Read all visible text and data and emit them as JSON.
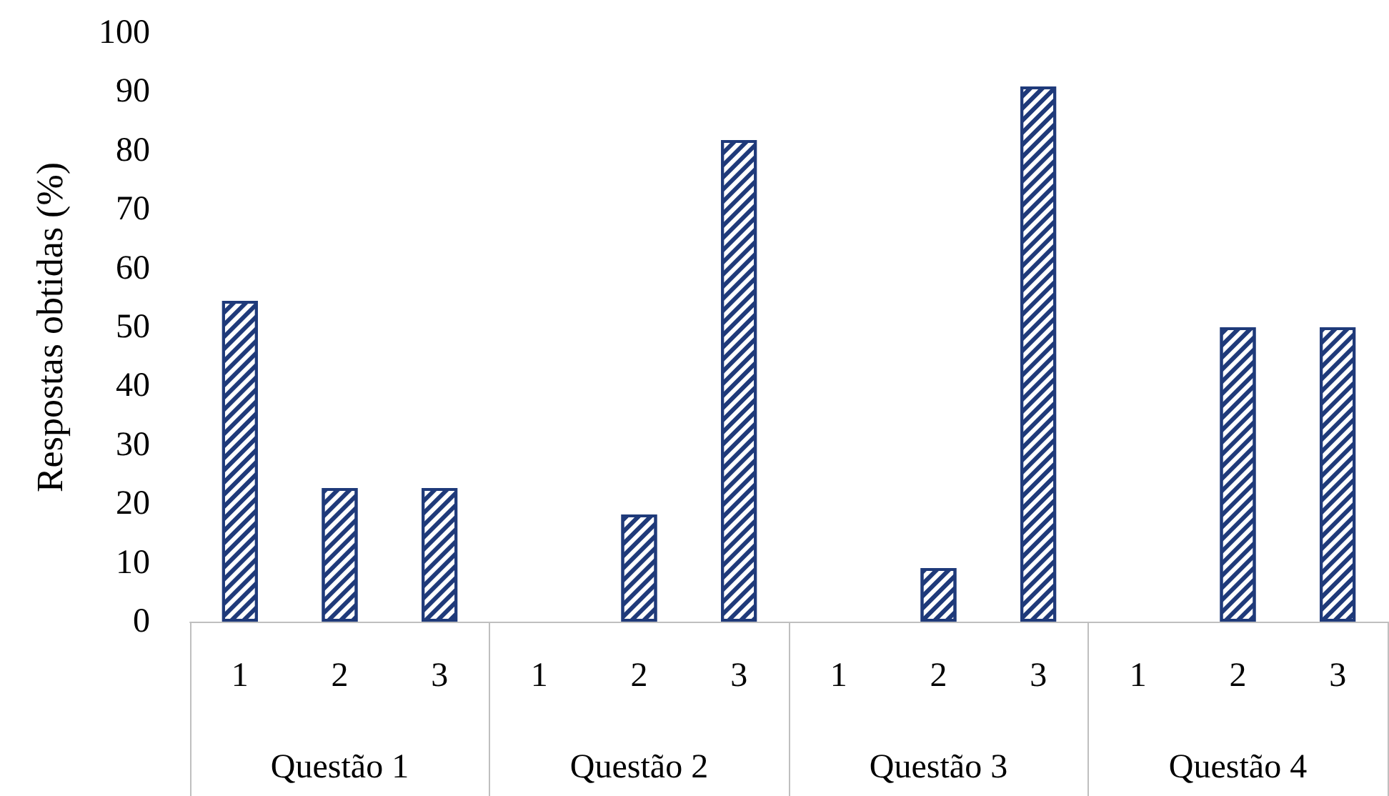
{
  "chart_data": {
    "type": "bar",
    "ylabel": "Respostas obtidas (%)",
    "categories": [
      "1",
      "2",
      "3",
      "1",
      "2",
      "3",
      "1",
      "2",
      "3",
      "1",
      "2",
      "3"
    ],
    "values": [
      54.5,
      22.7,
      22.7,
      0,
      18.2,
      81.8,
      0,
      9.1,
      90.9,
      0,
      50,
      50
    ],
    "color": "#1f3a7a",
    "annotations": [
      "Questão 1",
      "Questão 2",
      "Questão 3",
      "Questão 4"
    ],
    "ylim": [
      0,
      100
    ],
    "yticks": [
      0,
      10,
      20,
      30,
      40,
      50,
      60,
      70,
      80,
      90,
      100
    ],
    "grid": false
  }
}
